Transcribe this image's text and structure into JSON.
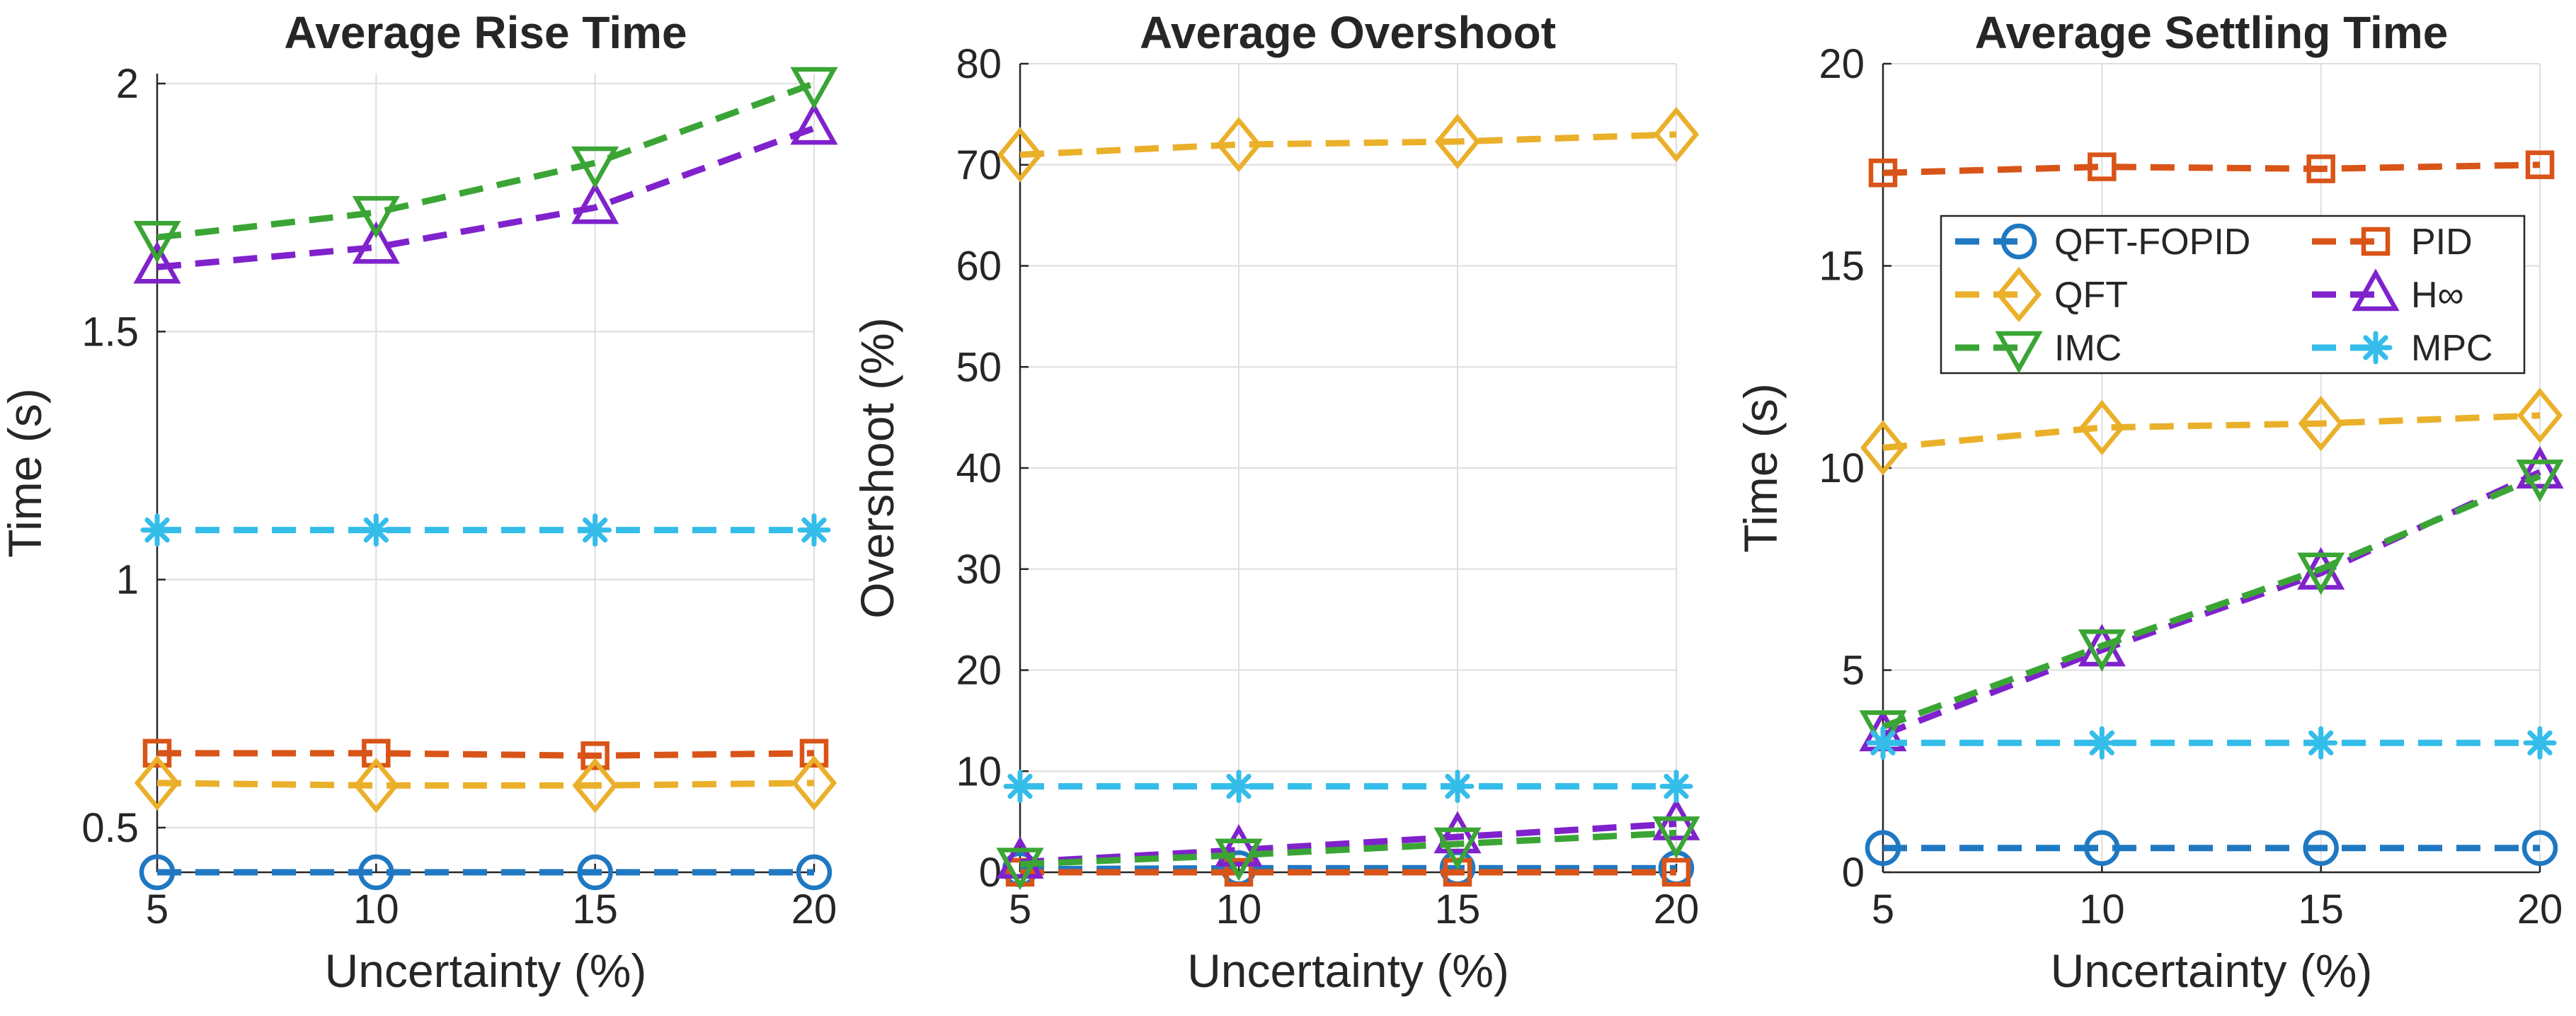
{
  "chart_data": [
    {
      "type": "line",
      "title": "Average Rise Time",
      "xlabel": "Uncertainty (%)",
      "ylabel": "Time (s)",
      "x": [
        5,
        10,
        15,
        20
      ],
      "xlim": [
        5,
        20
      ],
      "ylim": [
        0.41,
        2.02
      ],
      "xticks": [
        "5",
        "10",
        "15",
        "20"
      ],
      "yticks": [
        {
          "value": 0.5,
          "label": "0.5"
        },
        {
          "value": 1,
          "label": "1"
        },
        {
          "value": 1.5,
          "label": "1.5"
        },
        {
          "value": 2,
          "label": "2"
        }
      ],
      "grid": true,
      "series": [
        {
          "name": "QFT-FOPID",
          "values": [
            0.41,
            0.41,
            0.41,
            0.41
          ]
        },
        {
          "name": "PID",
          "values": [
            0.65,
            0.65,
            0.645,
            0.65
          ]
        },
        {
          "name": "QFT",
          "values": [
            0.59,
            0.585,
            0.585,
            0.59
          ]
        },
        {
          "name": "H∞",
          "values": [
            1.63,
            1.67,
            1.75,
            1.91
          ]
        },
        {
          "name": "IMC",
          "values": [
            1.69,
            1.74,
            1.84,
            2.0
          ]
        },
        {
          "name": "MPC",
          "values": [
            1.1,
            1.1,
            1.1,
            1.1
          ]
        }
      ]
    },
    {
      "type": "line",
      "title": "Average Overshoot",
      "xlabel": "Uncertainty (%)",
      "ylabel": "Overshoot (%)",
      "x": [
        5,
        10,
        15,
        20
      ],
      "xlim": [
        5,
        20
      ],
      "ylim": [
        0,
        80
      ],
      "xticks": [
        "5",
        "10",
        "15",
        "20"
      ],
      "yticks": [
        {
          "value": 0,
          "label": "0"
        },
        {
          "value": 10,
          "label": "10"
        },
        {
          "value": 20,
          "label": "20"
        },
        {
          "value": 30,
          "label": "30"
        },
        {
          "value": 40,
          "label": "40"
        },
        {
          "value": 50,
          "label": "50"
        },
        {
          "value": 60,
          "label": "60"
        },
        {
          "value": 70,
          "label": "70"
        },
        {
          "value": 80,
          "label": "80"
        }
      ],
      "grid": true,
      "series": [
        {
          "name": "QFT-FOPID",
          "values": [
            0.3,
            0.4,
            0.4,
            0.4
          ]
        },
        {
          "name": "PID",
          "values": [
            0.0,
            0.0,
            0.0,
            0.0
          ]
        },
        {
          "name": "QFT",
          "values": [
            71.0,
            72.0,
            72.3,
            73.0
          ]
        },
        {
          "name": "H∞",
          "values": [
            1.0,
            2.2,
            3.5,
            4.8
          ]
        },
        {
          "name": "IMC",
          "values": [
            0.8,
            1.7,
            2.8,
            3.9
          ]
        },
        {
          "name": "MPC",
          "values": [
            8.5,
            8.5,
            8.5,
            8.5
          ]
        }
      ]
    },
    {
      "type": "line",
      "title": "Average Settling Time",
      "xlabel": "Uncertainty (%)",
      "ylabel": "Time (s)",
      "x": [
        5,
        10,
        15,
        20
      ],
      "xlim": [
        5,
        20
      ],
      "ylim": [
        0,
        20
      ],
      "xticks": [
        "5",
        "10",
        "15",
        "20"
      ],
      "yticks": [
        {
          "value": 0,
          "label": "0"
        },
        {
          "value": 5,
          "label": "5"
        },
        {
          "value": 10,
          "label": "10"
        },
        {
          "value": 15,
          "label": "15"
        },
        {
          "value": 20,
          "label": "20"
        }
      ],
      "grid": true,
      "legend": {
        "placement": "upper-right, two columns",
        "entries": [
          "QFT-FOPID",
          "PID",
          "QFT",
          "H∞",
          "IMC",
          "MPC"
        ]
      },
      "series": [
        {
          "name": "QFT-FOPID",
          "values": [
            0.6,
            0.6,
            0.6,
            0.6
          ]
        },
        {
          "name": "PID",
          "values": [
            17.3,
            17.45,
            17.4,
            17.5
          ]
        },
        {
          "name": "QFT",
          "values": [
            10.5,
            11.0,
            11.1,
            11.3
          ]
        },
        {
          "name": "H∞",
          "values": [
            3.4,
            5.5,
            7.4,
            9.9
          ]
        },
        {
          "name": "IMC",
          "values": [
            3.6,
            5.6,
            7.5,
            9.8
          ]
        },
        {
          "name": "MPC",
          "values": [
            3.2,
            3.2,
            3.2,
            3.2
          ]
        }
      ]
    }
  ],
  "series_styles": {
    "QFT-FOPID": {
      "color": "#1f78c1",
      "marker": "circle"
    },
    "PID": {
      "color": "#d95418",
      "marker": "square"
    },
    "QFT": {
      "color": "#eab02a",
      "marker": "diamond"
    },
    "H∞": {
      "color": "#7f22cc",
      "marker": "triangle-up"
    },
    "IMC": {
      "color": "#3aa535",
      "marker": "triangle-down"
    },
    "MPC": {
      "color": "#35bdea",
      "marker": "asterisk"
    }
  },
  "draw_order": [
    "QFT-FOPID",
    "PID",
    "QFT",
    "H∞",
    "IMC",
    "MPC"
  ]
}
